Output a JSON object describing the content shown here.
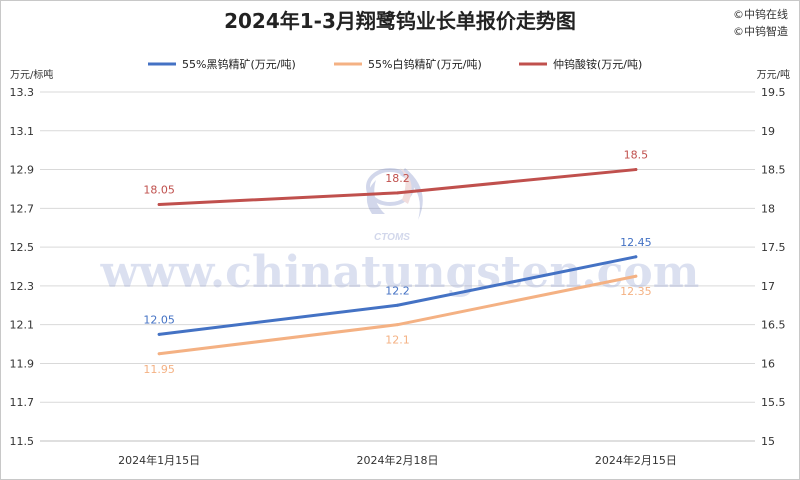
{
  "chart_data": {
    "type": "line",
    "title": "2024年1-3月翔鹭钨业长单报价走势图",
    "watermark_lines": [
      "©中钨在线",
      "©中钨智造"
    ],
    "background_watermark": "www.chinatungsten.com",
    "logo_text": "CTOMS",
    "left_axis": {
      "unit": "万元/标吨",
      "range": [
        11.5,
        13.3
      ],
      "ticks": [
        11.5,
        11.7,
        11.9,
        12.1,
        12.3,
        12.5,
        12.7,
        12.9,
        13.1,
        13.3
      ],
      "tick_labels": [
        "11.5",
        "11.7",
        "11.9",
        "12.1",
        "12.3",
        "12.5",
        "12.7",
        "12.9",
        "13.1",
        "13.3"
      ]
    },
    "right_axis": {
      "unit": "万元/吨",
      "range": [
        15,
        19.5
      ],
      "ticks": [
        15,
        15.5,
        16,
        16.5,
        17,
        17.5,
        18,
        18.5,
        19,
        19.5
      ],
      "tick_labels": [
        "15",
        "15.5",
        "16",
        "16.5",
        "17",
        "17.5",
        "18",
        "18.5",
        "19",
        "19.5"
      ]
    },
    "categories": [
      "2024年1月15日",
      "2024年2月18日",
      "2024年2月15日"
    ],
    "series": [
      {
        "name": "55%黑钨精矿(万元/吨)",
        "axis": "left",
        "color": "#4472C4",
        "values": [
          12.05,
          12.2,
          12.45
        ],
        "labels": [
          "12.05",
          "12.2",
          "12.45"
        ],
        "label_position": "above"
      },
      {
        "name": "55%白钨精矿(万元/吨)",
        "axis": "left",
        "color": "#F4B183",
        "values": [
          11.95,
          12.1,
          12.35
        ],
        "labels": [
          "11.95",
          "12.1",
          "12.35"
        ],
        "label_position": "below"
      },
      {
        "name": "仲钨酸铵(万元/吨)",
        "axis": "right",
        "color": "#C0504D",
        "values": [
          18.05,
          18.2,
          18.5
        ],
        "labels": [
          "18.05",
          "18.2",
          "18.5"
        ],
        "label_position": "above"
      }
    ],
    "grid": true,
    "legend_position": "top"
  }
}
